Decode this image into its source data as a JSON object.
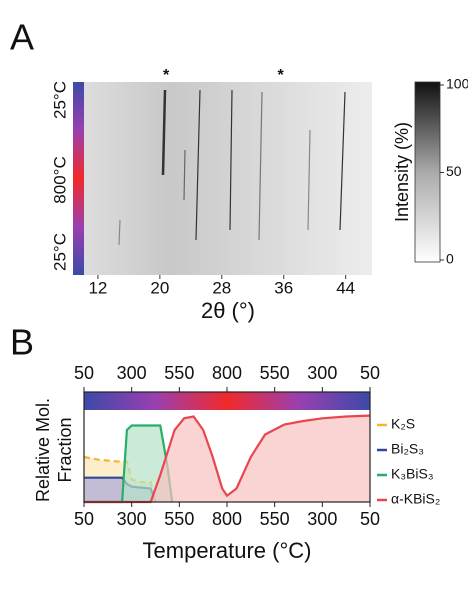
{
  "chart_data": [
    {
      "type": "heatmap",
      "panel_label": "A",
      "xlabel": "2θ (°)",
      "xlim": [
        10.2,
        47.4
      ],
      "xticks": [
        12,
        20,
        28,
        36,
        44
      ],
      "y_labels": [
        "25°C",
        "800°C",
        "25°C"
      ],
      "annotations": [
        {
          "text": "*",
          "x": 20.8
        },
        {
          "text": "*",
          "x": 35.6
        }
      ],
      "colorbar": {
        "label": "Intensity (%)",
        "lim": [
          0,
          100
        ],
        "ticks": [
          0,
          50,
          100
        ]
      }
    },
    {
      "type": "area",
      "panel_label": "B",
      "xlabel": "Temperature (°C)",
      "ylabel": [
        "Relative Mol.",
        "Fraction"
      ],
      "xlim": [
        0,
        6
      ],
      "xticks": [
        {
          "value": 0,
          "label": "50"
        },
        {
          "value": 1,
          "label": "300"
        },
        {
          "value": 2,
          "label": "550"
        },
        {
          "value": 3,
          "label": "800"
        },
        {
          "value": 4,
          "label": "550"
        },
        {
          "value": 5,
          "label": "300"
        },
        {
          "value": 6,
          "label": "50"
        }
      ],
      "ylim": [
        0,
        1
      ],
      "series": [
        {
          "name": "K₂S",
          "color": "#f2b632",
          "fill": "#fbe7b5",
          "linestyle": "dashed",
          "x": [
            0,
            0.3,
            0.7,
            0.9,
            1.0,
            1.2,
            1.4,
            1.5
          ],
          "values": [
            0.5,
            0.47,
            0.45,
            0.45,
            0.25,
            0.22,
            0.22,
            0
          ]
        },
        {
          "name": "Bi₂S₃",
          "color": "#34469a",
          "fill": "#aba6d8",
          "x": [
            0,
            0.8,
            0.9,
            1.0,
            1.4,
            1.5
          ],
          "values": [
            0.27,
            0.27,
            0.2,
            0.17,
            0.15,
            0
          ]
        },
        {
          "name": "K₃BiS₃",
          "color": "#27ae68",
          "fill": "#b5e2c8",
          "x": [
            0,
            0.8,
            0.9,
            1.0,
            1.6,
            1.75,
            1.85
          ],
          "values": [
            0,
            0,
            0.8,
            0.85,
            0.85,
            0.4,
            0
          ]
        },
        {
          "name": "α-KBiS₂",
          "color": "#e8474f",
          "fill": "#f8c0c0",
          "x": [
            0,
            1.4,
            1.6,
            1.9,
            2.1,
            2.3,
            2.5,
            2.7,
            2.9,
            3.0,
            3.2,
            3.5,
            3.8,
            4.2,
            4.6,
            5,
            5.5,
            6
          ],
          "values": [
            0,
            0,
            0.3,
            0.8,
            0.93,
            0.95,
            0.8,
            0.5,
            0.15,
            0.07,
            0.15,
            0.5,
            0.75,
            0.86,
            0.9,
            0.93,
            0.95,
            0.96
          ]
        }
      ]
    }
  ]
}
